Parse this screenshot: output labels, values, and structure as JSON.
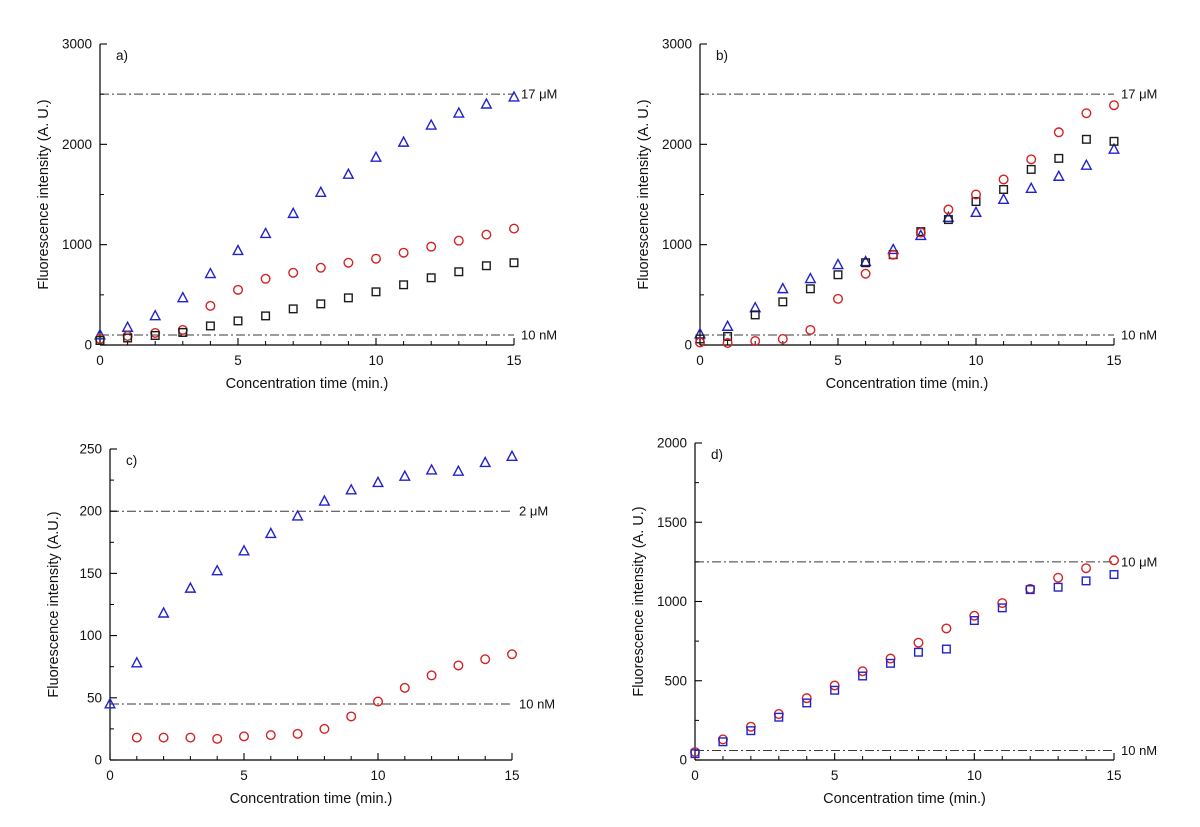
{
  "figure": {
    "background": "#ffffff"
  },
  "chart_data": [
    {
      "id": "a",
      "type": "scatter",
      "panel_label": "a)",
      "xlabel": "Concentration time (min.)",
      "ylabel": "Fluorescence intensity (A. U.)",
      "xlim": [
        0,
        15
      ],
      "ylim": [
        0,
        3000
      ],
      "xticks": [
        0,
        5,
        10,
        15
      ],
      "yticks": [
        0,
        1000,
        2000,
        3000
      ],
      "x_minor_step": 1,
      "y_minor_step": 500,
      "grid": false,
      "legend": "none",
      "ref_lines": [
        {
          "y": 2500,
          "label": "17 μM"
        },
        {
          "y": 100,
          "label": "10 nM"
        }
      ],
      "x": [
        0,
        1,
        2,
        3,
        4,
        5,
        6,
        7,
        8,
        9,
        10,
        11,
        12,
        13,
        14,
        15
      ],
      "series": [
        {
          "name": "triangle-blue",
          "marker": "triangle",
          "color": "#2222cc",
          "y": [
            100,
            175,
            290,
            470,
            710,
            940,
            1110,
            1310,
            1520,
            1700,
            1870,
            2020,
            2190,
            2310,
            2400,
            2470
          ]
        },
        {
          "name": "circle-red",
          "marker": "circle",
          "color": "#d42222",
          "y": [
            60,
            90,
            120,
            150,
            390,
            550,
            660,
            720,
            770,
            820,
            860,
            920,
            980,
            1040,
            1100,
            1160
          ]
        },
        {
          "name": "square-black",
          "marker": "square",
          "color": "#1b1b1b",
          "y": [
            45,
            70,
            95,
            125,
            190,
            240,
            290,
            360,
            410,
            470,
            530,
            600,
            670,
            730,
            790,
            820
          ]
        }
      ]
    },
    {
      "id": "b",
      "type": "scatter",
      "panel_label": "b)",
      "xlabel": "Concentration time (min.)",
      "ylabel": "Fluorescence intensity (A. U.)",
      "xlim": [
        0,
        15
      ],
      "ylim": [
        0,
        3000
      ],
      "xticks": [
        0,
        5,
        10,
        15
      ],
      "yticks": [
        0,
        1000,
        2000,
        3000
      ],
      "x_minor_step": 1,
      "y_minor_step": 500,
      "grid": false,
      "legend": "none",
      "ref_lines": [
        {
          "y": 2500,
          "label": "17 μM"
        },
        {
          "y": 100,
          "label": "10 nM"
        }
      ],
      "x": [
        0,
        1,
        2,
        3,
        4,
        5,
        6,
        7,
        8,
        9,
        10,
        11,
        12,
        13,
        14,
        15
      ],
      "series": [
        {
          "name": "triangle-blue",
          "marker": "triangle",
          "color": "#2222cc",
          "y": [
            110,
            185,
            370,
            560,
            660,
            800,
            830,
            950,
            1090,
            1270,
            1320,
            1450,
            1560,
            1680,
            1790,
            1950
          ]
        },
        {
          "name": "square-black",
          "marker": "square",
          "color": "#1b1b1b",
          "y": [
            60,
            85,
            300,
            430,
            560,
            700,
            820,
            900,
            1130,
            1250,
            1430,
            1550,
            1750,
            1860,
            2050,
            2030
          ]
        },
        {
          "name": "circle-red",
          "marker": "circle",
          "color": "#d42222",
          "y": [
            25,
            20,
            40,
            60,
            150,
            460,
            710,
            900,
            1120,
            1350,
            1500,
            1650,
            1850,
            2120,
            2310,
            2390
          ]
        }
      ]
    },
    {
      "id": "c",
      "type": "scatter",
      "panel_label": "c)",
      "xlabel": "Concentration time (min.)",
      "ylabel": "Fluorescence intensity (A.U.)",
      "xlim": [
        0,
        15
      ],
      "ylim": [
        0,
        250
      ],
      "xticks": [
        0,
        5,
        10,
        15
      ],
      "yticks": [
        0,
        50,
        100,
        150,
        200,
        250
      ],
      "x_minor_step": 1,
      "y_minor_step": 25,
      "grid": false,
      "legend": "none",
      "ref_lines": [
        {
          "y": 200,
          "label": "2 μM"
        },
        {
          "y": 45,
          "label": "10 nM"
        }
      ],
      "x": [
        0,
        1,
        2,
        3,
        4,
        5,
        6,
        7,
        8,
        9,
        10,
        11,
        12,
        13,
        14,
        15
      ],
      "series": [
        {
          "name": "triangle-blue",
          "marker": "triangle",
          "color": "#2222cc",
          "y": [
            45,
            78,
            118,
            138,
            152,
            168,
            182,
            196,
            208,
            217,
            223,
            228,
            233,
            232,
            239,
            244
          ]
        },
        {
          "name": "circle-red",
          "marker": "circle",
          "color": "#d42222",
          "x": [
            1,
            2,
            3,
            4,
            5,
            6,
            7,
            8,
            9,
            10,
            11,
            12,
            13,
            14,
            15
          ],
          "y": [
            18,
            18,
            18,
            17,
            19,
            20,
            21,
            25,
            35,
            47,
            58,
            68,
            76,
            81,
            85
          ]
        }
      ]
    },
    {
      "id": "d",
      "type": "scatter",
      "panel_label": "d)",
      "xlabel": "Concentration time (min.)",
      "ylabel": "Fluorescence intensity (A. U.)",
      "xlim": [
        0,
        15
      ],
      "ylim": [
        0,
        2000
      ],
      "xticks": [
        0,
        5,
        10,
        15
      ],
      "yticks": [
        0,
        500,
        1000,
        1500,
        2000
      ],
      "x_minor_step": 1,
      "y_minor_step": 250,
      "grid": false,
      "legend": "none",
      "ref_lines": [
        {
          "y": 1250,
          "label": "10 μM"
        },
        {
          "y": 60,
          "label": "10 nM"
        }
      ],
      "x": [
        0,
        1,
        2,
        3,
        4,
        5,
        6,
        7,
        8,
        9,
        10,
        11,
        12,
        13,
        14,
        15
      ],
      "series": [
        {
          "name": "circle-red",
          "marker": "circle",
          "color": "#d42222",
          "y": [
            50,
            130,
            210,
            290,
            390,
            470,
            560,
            640,
            740,
            830,
            910,
            990,
            1080,
            1150,
            1210,
            1260
          ]
        },
        {
          "name": "square-blue",
          "marker": "square",
          "color": "#2222cc",
          "y": [
            40,
            115,
            185,
            270,
            360,
            440,
            530,
            610,
            680,
            700,
            880,
            960,
            1075,
            1090,
            1130,
            1170
          ]
        }
      ]
    }
  ]
}
